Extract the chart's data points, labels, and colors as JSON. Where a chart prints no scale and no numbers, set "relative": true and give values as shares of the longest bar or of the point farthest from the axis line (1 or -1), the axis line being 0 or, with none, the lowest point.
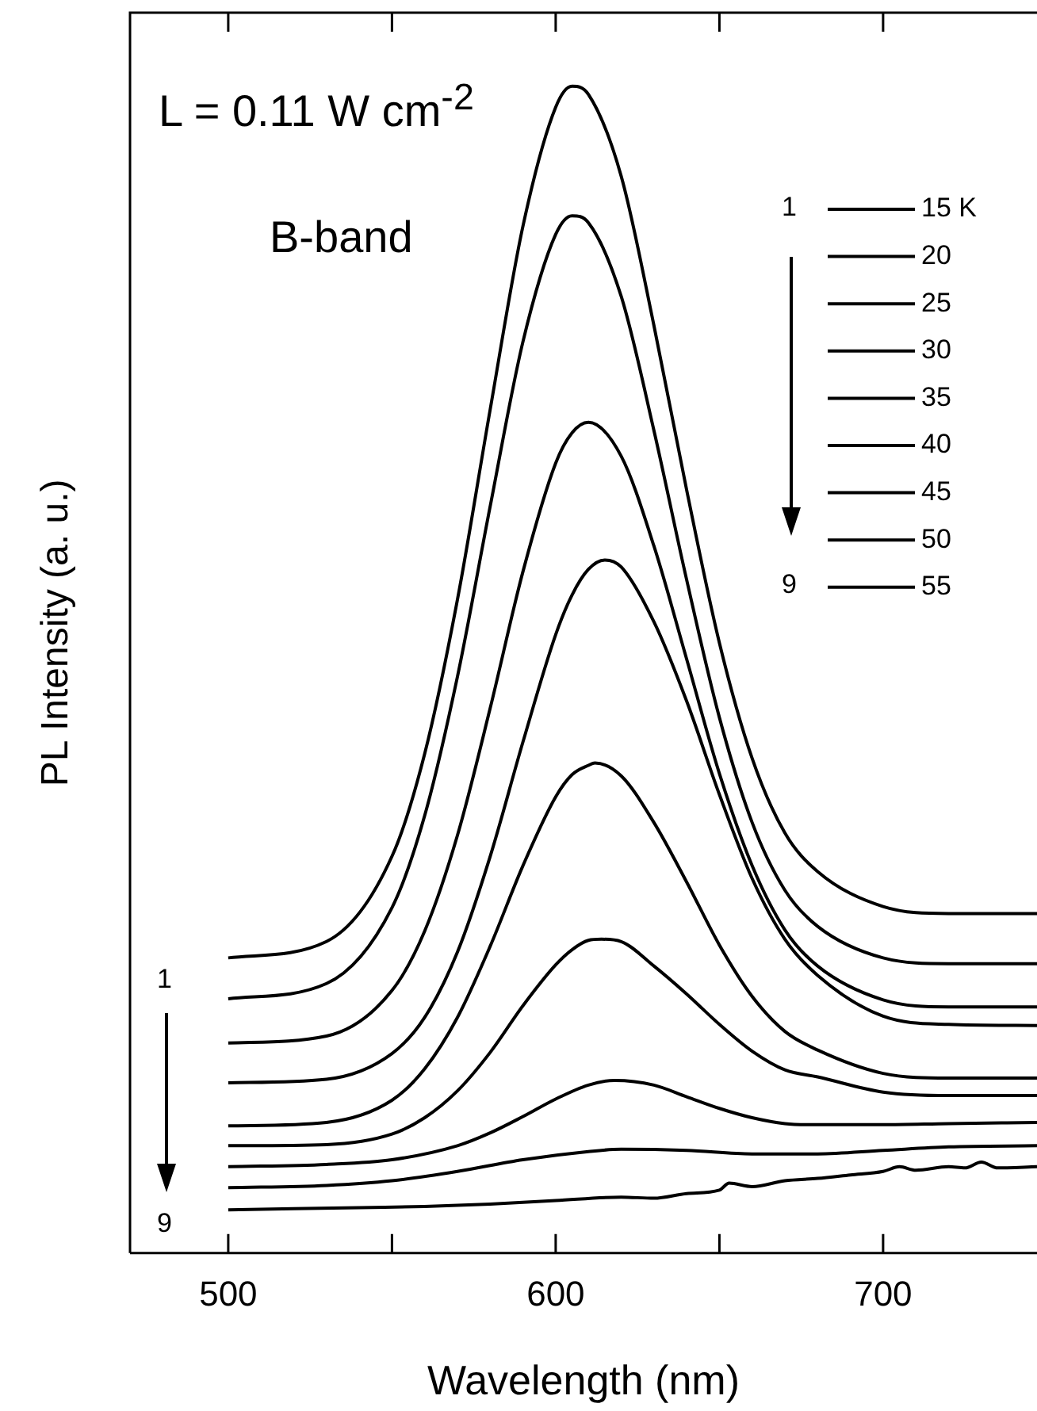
{
  "chart_data": {
    "type": "line",
    "xlabel": "Wavelength (nm)",
    "ylabel": "PL Intensity (a. u.)",
    "relative": true,
    "legend": "top right",
    "marker": "none",
    "line_style": "solid",
    "grid": false,
    "xlim": [
      470,
      747
    ],
    "xticks": [
      500,
      {
        "value": 550,
        "label": null
      },
      600,
      {
        "value": 650,
        "label": null
      },
      700
    ],
    "annotations": [
      "L = 0.11 W cm$^{-2}$",
      "B-band",
      "1",
      "9",
      "1",
      "9"
    ],
    "series": [
      {
        "name": "15 K",
        "color": "#000000",
        "x": [
          500,
          530,
          550,
          560,
          570,
          580,
          590,
          600,
          605,
          610,
          620,
          630,
          640,
          650,
          660,
          670,
          680,
          700,
          720,
          747
        ],
        "values": [
          0.253,
          0.267,
          0.34,
          0.428,
          0.56,
          0.723,
          0.88,
          0.982,
          1.0,
          0.993,
          0.923,
          0.795,
          0.654,
          0.523,
          0.424,
          0.36,
          0.327,
          0.297,
          0.291,
          0.291
        ]
      },
      {
        "name": "20",
        "color": "#000000",
        "x": [
          500,
          530,
          550,
          560,
          570,
          580,
          590,
          600,
          605,
          610,
          620,
          630,
          640,
          650,
          660,
          670,
          680,
          700,
          720,
          747
        ],
        "values": [
          0.218,
          0.231,
          0.296,
          0.375,
          0.494,
          0.64,
          0.781,
          0.873,
          0.889,
          0.883,
          0.82,
          0.705,
          0.577,
          0.459,
          0.369,
          0.311,
          0.28,
          0.253,
          0.248,
          0.248
        ]
      },
      {
        "name": "25",
        "color": "#000000",
        "x": [
          500,
          530,
          550,
          560,
          570,
          580,
          590,
          600,
          605,
          610,
          620,
          630,
          640,
          650,
          660,
          670,
          680,
          700,
          720,
          747
        ],
        "values": [
          0.18,
          0.186,
          0.225,
          0.276,
          0.358,
          0.467,
          0.584,
          0.677,
          0.703,
          0.712,
          0.683,
          0.606,
          0.509,
          0.411,
          0.332,
          0.277,
          0.246,
          0.217,
          0.211,
          0.211
        ]
      },
      {
        "name": "30",
        "color": "#000000",
        "x": [
          500,
          530,
          550,
          560,
          570,
          580,
          590,
          600,
          605,
          610,
          615,
          620,
          630,
          640,
          650,
          660,
          670,
          680,
          700,
          720,
          747
        ],
        "values": [
          0.146,
          0.149,
          0.171,
          0.202,
          0.258,
          0.34,
          0.438,
          0.53,
          0.564,
          0.586,
          0.594,
          0.588,
          0.541,
          0.473,
          0.393,
          0.321,
          0.269,
          0.238,
          0.203,
          0.196,
          0.195
        ]
      },
      {
        "name": "35",
        "color": "#000000",
        "x": [
          500,
          530,
          550,
          560,
          570,
          580,
          590,
          600,
          605,
          610,
          612,
          620,
          630,
          640,
          650,
          660,
          670,
          680,
          700,
          720,
          747
        ],
        "values": [
          0.109,
          0.112,
          0.131,
          0.158,
          0.202,
          0.263,
          0.332,
          0.391,
          0.41,
          0.418,
          0.42,
          0.409,
          0.369,
          0.318,
          0.264,
          0.22,
          0.19,
          0.174,
          0.154,
          0.15,
          0.15
        ]
      },
      {
        "name": "40",
        "color": "#000000",
        "x": [
          500,
          530,
          550,
          560,
          570,
          580,
          590,
          600,
          605,
          610,
          614,
          620,
          630,
          640,
          650,
          660,
          670,
          680,
          700,
          720,
          747
        ],
        "values": [
          0.092,
          0.093,
          0.102,
          0.116,
          0.139,
          0.172,
          0.212,
          0.247,
          0.26,
          0.268,
          0.269,
          0.267,
          0.246,
          0.222,
          0.196,
          0.173,
          0.157,
          0.151,
          0.138,
          0.135,
          0.135
        ]
      },
      {
        "name": "45",
        "color": "#000000",
        "x": [
          500,
          530,
          550,
          570,
          580,
          590,
          600,
          610,
          618,
          630,
          640,
          650,
          660,
          670,
          680,
          700,
          720,
          747
        ],
        "values": [
          0.074,
          0.076,
          0.08,
          0.092,
          0.103,
          0.117,
          0.132,
          0.144,
          0.148,
          0.144,
          0.134,
          0.124,
          0.116,
          0.111,
          0.11,
          0.11,
          0.111,
          0.112
        ]
      },
      {
        "name": "50",
        "color": "#000000",
        "x": [
          500,
          530,
          550,
          570,
          590,
          610,
          620,
          640,
          660,
          680,
          700,
          720,
          747
        ],
        "values": [
          0.056,
          0.058,
          0.062,
          0.07,
          0.08,
          0.087,
          0.089,
          0.088,
          0.085,
          0.085,
          0.088,
          0.091,
          0.092
        ]
      },
      {
        "name": "55",
        "color": "#000000",
        "x": [
          500,
          520,
          540,
          560,
          580,
          600,
          620,
          630,
          640,
          650,
          653,
          660,
          670,
          680,
          690,
          700,
          705,
          710,
          720,
          725,
          730,
          735,
          747
        ],
        "values": [
          0.037,
          0.038,
          0.039,
          0.04,
          0.042,
          0.045,
          0.048,
          0.047,
          0.051,
          0.054,
          0.06,
          0.057,
          0.062,
          0.064,
          0.067,
          0.07,
          0.074,
          0.071,
          0.074,
          0.073,
          0.078,
          0.073,
          0.074
        ]
      }
    ]
  }
}
